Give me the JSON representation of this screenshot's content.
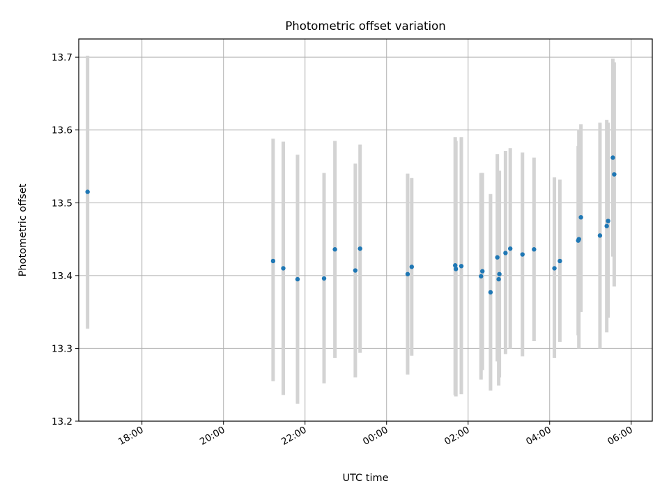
{
  "chart_data": {
    "type": "scatter",
    "title": "Photometric offset variation",
    "xlabel": "UTC time",
    "ylabel": "Photometric offset",
    "xlim": [
      "16:27",
      "06:31"
    ],
    "ylim": [
      13.2,
      13.725
    ],
    "x_ticks": [
      "18:00",
      "20:00",
      "22:00",
      "00:00",
      "02:00",
      "04:00",
      "06:00"
    ],
    "y_ticks": [
      "13.2",
      "13.3",
      "13.4",
      "13.5",
      "13.6",
      "13.7"
    ],
    "grid": true,
    "point_color": "#1f77b4",
    "errorbar_color": "#d3d3d3",
    "points": [
      {
        "x": "16:40",
        "y": 13.515,
        "ylow": 13.327,
        "yhigh": 13.702
      },
      {
        "x": "21:13",
        "y": 13.42,
        "ylow": 13.255,
        "yhigh": 13.588
      },
      {
        "x": "21:28",
        "y": 13.41,
        "ylow": 13.236,
        "yhigh": 13.584
      },
      {
        "x": "21:49",
        "y": 13.395,
        "ylow": 13.224,
        "yhigh": 13.566
      },
      {
        "x": "22:28",
        "y": 13.396,
        "ylow": 13.252,
        "yhigh": 13.541
      },
      {
        "x": "22:44",
        "y": 13.436,
        "ylow": 13.287,
        "yhigh": 13.585
      },
      {
        "x": "23:14",
        "y": 13.407,
        "ylow": 13.26,
        "yhigh": 13.554
      },
      {
        "x": "23:21",
        "y": 13.437,
        "ylow": 13.294,
        "yhigh": 13.58
      },
      {
        "x": "00:31",
        "y": 13.402,
        "ylow": 13.264,
        "yhigh": 13.54
      },
      {
        "x": "00:37",
        "y": 13.412,
        "ylow": 13.29,
        "yhigh": 13.534
      },
      {
        "x": "01:41",
        "y": 13.414,
        "ylow": 13.236,
        "yhigh": 13.59
      },
      {
        "x": "01:42",
        "y": 13.409,
        "ylow": 13.234,
        "yhigh": 13.585
      },
      {
        "x": "01:50",
        "y": 13.413,
        "ylow": 13.237,
        "yhigh": 13.59
      },
      {
        "x": "02:19",
        "y": 13.399,
        "ylow": 13.257,
        "yhigh": 13.541
      },
      {
        "x": "02:21",
        "y": 13.406,
        "ylow": 13.27,
        "yhigh": 13.541
      },
      {
        "x": "02:33",
        "y": 13.377,
        "ylow": 13.242,
        "yhigh": 13.512
      },
      {
        "x": "02:43",
        "y": 13.425,
        "ylow": 13.282,
        "yhigh": 13.567
      },
      {
        "x": "02:45",
        "y": 13.395,
        "ylow": 13.249,
        "yhigh": 13.544
      },
      {
        "x": "02:46",
        "y": 13.402,
        "ylow": 13.26,
        "yhigh": 13.544
      },
      {
        "x": "02:55",
        "y": 13.431,
        "ylow": 13.292,
        "yhigh": 13.571
      },
      {
        "x": "03:02",
        "y": 13.437,
        "ylow": 13.3,
        "yhigh": 13.575
      },
      {
        "x": "03:20",
        "y": 13.429,
        "ylow": 13.289,
        "yhigh": 13.569
      },
      {
        "x": "03:37",
        "y": 13.436,
        "ylow": 13.31,
        "yhigh": 13.562
      },
      {
        "x": "04:07",
        "y": 13.41,
        "ylow": 13.287,
        "yhigh": 13.535
      },
      {
        "x": "04:15",
        "y": 13.42,
        "ylow": 13.309,
        "yhigh": 13.532
      },
      {
        "x": "04:42",
        "y": 13.448,
        "ylow": 13.318,
        "yhigh": 13.578
      },
      {
        "x": "04:43",
        "y": 13.45,
        "ylow": 13.3,
        "yhigh": 13.6
      },
      {
        "x": "04:46",
        "y": 13.48,
        "ylow": 13.35,
        "yhigh": 13.608
      },
      {
        "x": "05:14",
        "y": 13.455,
        "ylow": 13.3,
        "yhigh": 13.61
      },
      {
        "x": "05:24",
        "y": 13.468,
        "ylow": 13.322,
        "yhigh": 13.614
      },
      {
        "x": "05:26",
        "y": 13.475,
        "ylow": 13.342,
        "yhigh": 13.61
      },
      {
        "x": "05:33",
        "y": 13.562,
        "ylow": 13.426,
        "yhigh": 13.698
      },
      {
        "x": "05:35",
        "y": 13.539,
        "ylow": 13.385,
        "yhigh": 13.693
      }
    ]
  }
}
